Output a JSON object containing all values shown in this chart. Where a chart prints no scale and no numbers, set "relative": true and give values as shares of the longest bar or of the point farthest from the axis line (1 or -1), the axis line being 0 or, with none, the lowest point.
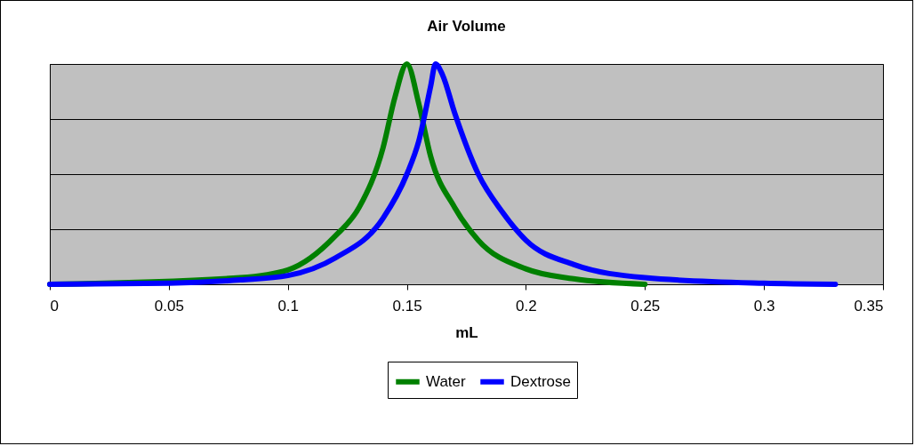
{
  "chart_data": {
    "type": "line",
    "title": "Air Volume",
    "xlabel": "mL",
    "relative": true,
    "xlim": [
      0,
      0.35
    ],
    "xticks": [
      0,
      0.05,
      0.1,
      0.15,
      0.2,
      0.25,
      0.3,
      0.35
    ],
    "grid": "y",
    "legend": "bottom",
    "marker": "none",
    "line_style": "solid",
    "series": [
      {
        "name": "Water",
        "color": "#008000",
        "x": [
          0,
          0.08,
          0.1,
          0.12,
          0.13,
          0.14,
          0.145,
          0.15,
          0.155,
          0.16,
          0.17,
          0.18,
          0.2,
          0.22,
          0.25
        ],
        "values": [
          0,
          0.03,
          0.065,
          0.22,
          0.35,
          0.62,
          0.85,
          1,
          0.82,
          0.58,
          0.35,
          0.2,
          0.07,
          0.025,
          0
        ]
      },
      {
        "name": "Dextrose",
        "color": "#0000ff",
        "x": [
          0,
          0.05,
          0.08,
          0.1,
          0.12,
          0.14,
          0.15,
          0.155,
          0.16,
          0.162,
          0.165,
          0.17,
          0.18,
          0.19,
          0.2,
          0.22,
          0.25,
          0.3,
          0.33
        ],
        "values": [
          0,
          0.005,
          0.02,
          0.04,
          0.12,
          0.3,
          0.5,
          0.65,
          0.9,
          1,
          0.95,
          0.78,
          0.5,
          0.33,
          0.2,
          0.09,
          0.03,
          0.005,
          0
        ]
      }
    ]
  }
}
